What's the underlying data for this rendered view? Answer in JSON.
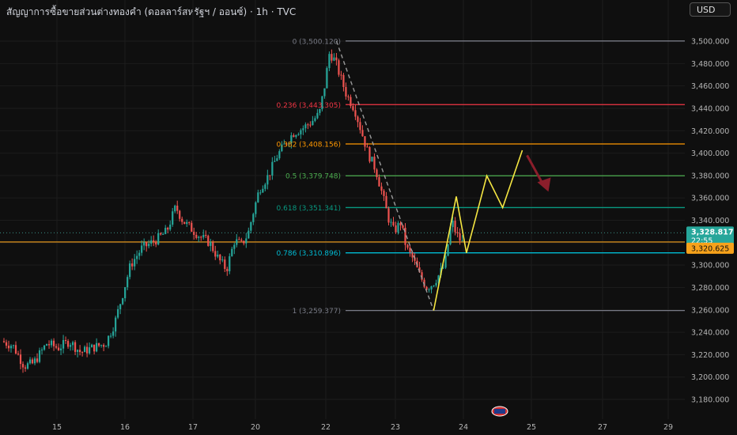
{
  "header": {
    "title": "สัญญาการซื้อขายส่วนต่างทองคำ (ดอลลาร์สหรัฐฯ / ออนซ์) · 1h · TVC",
    "currency": "USD"
  },
  "colors": {
    "background": "#0f0f0f",
    "candle_up": "#26a69a",
    "candle_down": "#ef5350",
    "orange_line": "#f7a21b",
    "projection": "#f5e642",
    "arrow": "#8b1e2b"
  },
  "chart_data": {
    "type": "candlestick",
    "timeframe": "1h",
    "x_tick_labels": [
      "15",
      "16",
      "17",
      "20",
      "22",
      "23",
      "24",
      "25",
      "27",
      "29"
    ],
    "y_range": [
      3170,
      3520
    ],
    "y_tick_labels": [
      "3,500.000",
      "3,480.000",
      "3,460.000",
      "3,440.000",
      "3,420.000",
      "3,400.000",
      "3,380.000",
      "3,360.000",
      "3,340.000",
      "3,300.000",
      "3,280.000",
      "3,260.000",
      "3,240.000",
      "3,220.000",
      "3,200.000",
      "3,180.000"
    ],
    "current_price": 3328.817,
    "countdown": "22:55",
    "orange_level": 3320.625,
    "fibonacci": [
      {
        "label": "0 (3,500.120)",
        "value": 3500.12,
        "color": "#787b86"
      },
      {
        "label": "0.236 (3,443.305)",
        "value": 3443.305,
        "color": "#f23645"
      },
      {
        "label": "0.382 (3,408.156)",
        "value": 3408.156,
        "color": "#ff9800"
      },
      {
        "label": "0.5 (3,379.748)",
        "value": 3379.748,
        "color": "#4caf50"
      },
      {
        "label": "0.618 (3,351.341)",
        "value": 3351.341,
        "color": "#089981"
      },
      {
        "label": "0.786 (3,310.896)",
        "value": 3310.896,
        "color": "#00bcd4"
      },
      {
        "label": "1 (3,259.377)",
        "value": 3259.377,
        "color": "#787b86"
      }
    ],
    "price_path": [
      [
        0,
        3232
      ],
      [
        0.5,
        3228
      ],
      [
        1.0,
        3210
      ],
      [
        1.4,
        3212
      ],
      [
        2.0,
        3230
      ],
      [
        2.5,
        3226
      ],
      [
        3.0,
        3232
      ],
      [
        3.5,
        3222
      ],
      [
        4.0,
        3226
      ],
      [
        4.6,
        3230
      ],
      [
        5.0,
        3248
      ],
      [
        5.3,
        3270
      ],
      [
        5.7,
        3300
      ],
      [
        6.2,
        3315
      ],
      [
        6.8,
        3322
      ],
      [
        7.3,
        3330
      ],
      [
        7.7,
        3352
      ],
      [
        8.0,
        3340
      ],
      [
        8.3,
        3334
      ],
      [
        8.8,
        3325
      ],
      [
        9.2,
        3320
      ],
      [
        9.6,
        3305
      ],
      [
        9.95,
        3296
      ],
      [
        10.3,
        3322
      ],
      [
        10.6,
        3318
      ],
      [
        10.9,
        3328
      ],
      [
        11.1,
        3345
      ],
      [
        11.4,
        3368
      ],
      [
        11.8,
        3380
      ],
      [
        12.2,
        3398
      ],
      [
        12.6,
        3410
      ],
      [
        12.9,
        3418
      ],
      [
        13.3,
        3422
      ],
      [
        13.7,
        3428
      ],
      [
        14.05,
        3435
      ],
      [
        14.3,
        3462
      ],
      [
        14.5,
        3490
      ],
      [
        14.75,
        3482
      ],
      [
        14.95,
        3470
      ],
      [
        15.25,
        3452
      ],
      [
        15.6,
        3440
      ],
      [
        15.9,
        3420
      ],
      [
        16.2,
        3400
      ],
      [
        16.55,
        3385
      ],
      [
        16.85,
        3362
      ],
      [
        17.1,
        3342
      ],
      [
        17.35,
        3330
      ],
      [
        17.65,
        3338
      ],
      [
        17.9,
        3315
      ],
      [
        18.2,
        3305
      ],
      [
        18.5,
        3290
      ],
      [
        18.8,
        3280
      ],
      [
        19.05,
        3283
      ],
      [
        19.3,
        3290
      ],
      [
        19.6,
        3300
      ],
      [
        19.9,
        3340
      ],
      [
        20.1,
        3328
      ],
      [
        20.35,
        3320
      ]
    ],
    "projection_path": [
      [
        19.0,
        3259.4
      ],
      [
        20.0,
        3361.3
      ],
      [
        20.45,
        3310.9
      ],
      [
        21.35,
        3379.7
      ],
      [
        22.05,
        3351.3
      ],
      [
        22.92,
        3402.5
      ]
    ],
    "dashed_path": [
      [
        14.7,
        3500.1
      ],
      [
        17.0,
        3370
      ],
      [
        19.0,
        3259.4
      ]
    ]
  }
}
